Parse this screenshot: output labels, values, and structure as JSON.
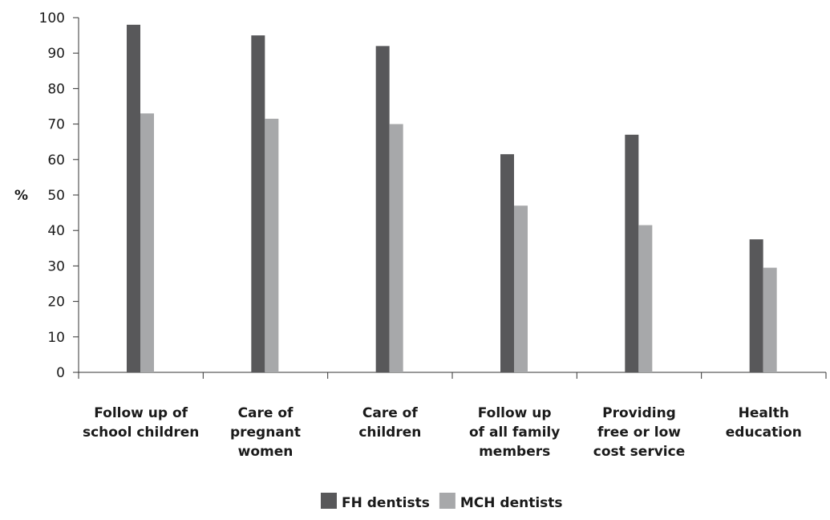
{
  "chart_data": {
    "type": "bar",
    "title": "",
    "xlabel": "",
    "ylabel": "%",
    "ylim": [
      0,
      100
    ],
    "yticks": [
      0,
      10,
      20,
      30,
      40,
      50,
      60,
      70,
      80,
      90,
      100
    ],
    "grid": false,
    "legend_position": "bottom-center",
    "categories": [
      [
        "Follow up of",
        "school children"
      ],
      [
        "Care of",
        "pregnant",
        "women"
      ],
      [
        "Care of",
        "children"
      ],
      [
        "Follow up",
        "of all family",
        "members"
      ],
      [
        "Providing",
        "free or low",
        "cost service"
      ],
      [
        "Health",
        "education"
      ]
    ],
    "series": [
      {
        "name": "FH dentists",
        "color": "#58585a",
        "values": [
          98,
          95,
          92,
          61.5,
          67,
          37.5
        ]
      },
      {
        "name": "MCH dentists",
        "color": "#a7a8aa",
        "values": [
          73,
          71.5,
          70,
          47,
          41.5,
          29.5
        ]
      }
    ]
  }
}
